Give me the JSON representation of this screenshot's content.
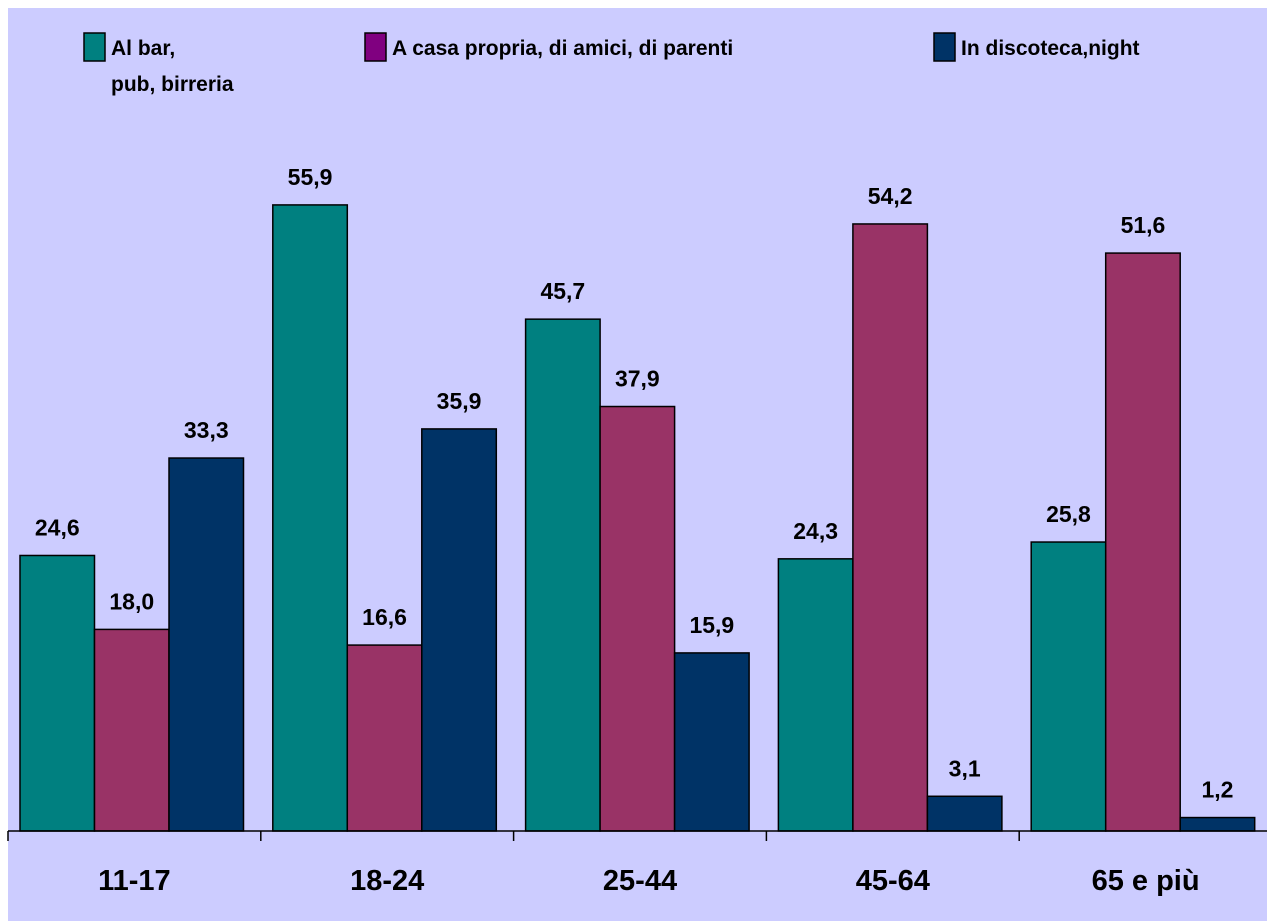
{
  "chart_data": {
    "type": "bar",
    "categories": [
      "11-17",
      "18-24",
      "25-44",
      "45-64",
      "65 e più"
    ],
    "series": [
      {
        "name": "Al bar, pub, birreria",
        "legend_lines": [
          "Al bar,",
          "pub, birreria"
        ],
        "color": "#008080",
        "values": [
          24.6,
          55.9,
          45.7,
          24.3,
          25.8
        ],
        "labels": [
          "24,6",
          "55,9",
          "45,7",
          "24,3",
          "25,8"
        ]
      },
      {
        "name": "A casa propria, di amici, di parenti",
        "legend_lines": [
          "A casa propria, di amici, di parenti"
        ],
        "color": "#993366",
        "legend_color": "#800080",
        "values": [
          18.0,
          16.6,
          37.9,
          54.2,
          51.6
        ],
        "labels": [
          "18,0",
          "16,6",
          "37,9",
          "54,2",
          "51,6"
        ]
      },
      {
        "name": "In discoteca,night",
        "legend_lines": [
          "In discoteca,night"
        ],
        "color": "#003366",
        "values": [
          33.3,
          35.9,
          15.9,
          3.1,
          1.2
        ],
        "labels": [
          "33,3",
          "35,9",
          "15,9",
          "3,1",
          "1,2"
        ]
      }
    ],
    "ylim": [
      0,
      60
    ],
    "legend_position": "top",
    "grid": false,
    "background_color": "#ccccff"
  }
}
